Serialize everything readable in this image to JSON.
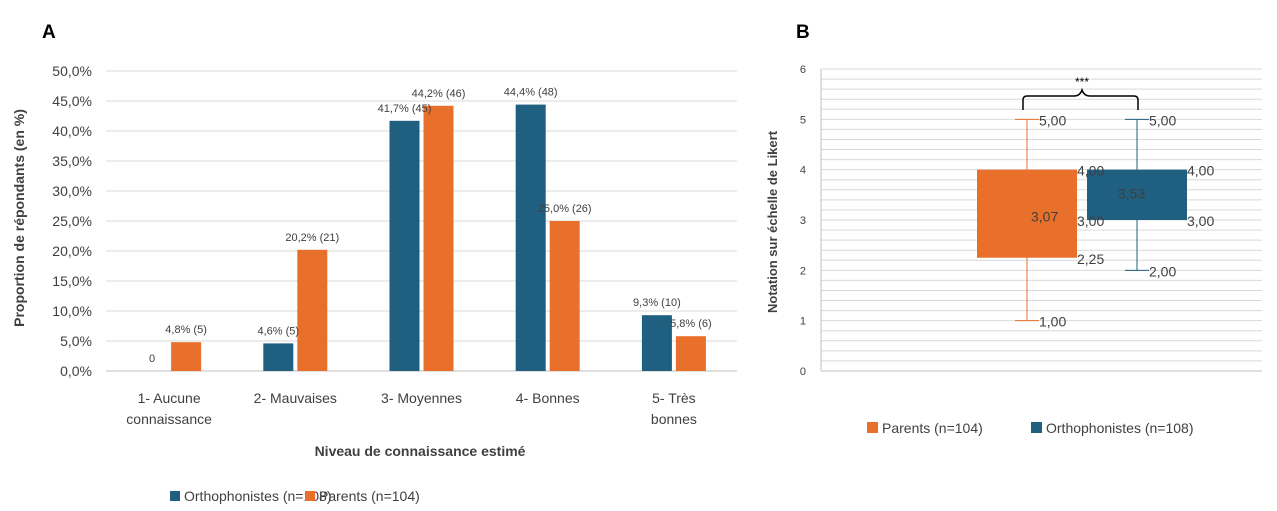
{
  "colors": {
    "orthophonistes": "#1f5f80",
    "parents": "#e8702a",
    "grid": "#d9d9d9",
    "axis": "#bfbfbf",
    "text": "#404040",
    "panel_label": "#000000"
  },
  "chart_data": [
    {
      "panel_label": "A",
      "type": "bar",
      "xlabel": "Niveau de connaissance estimé",
      "ylabel": "Proportion de répondants (en %)",
      "ylim": [
        0,
        50
      ],
      "y_ticks": [
        "0,0%",
        "5,0%",
        "10,0%",
        "15,0%",
        "20,0%",
        "25,0%",
        "30,0%",
        "35,0%",
        "40,0%",
        "45,0%",
        "50,0%"
      ],
      "categories": [
        [
          "1- Aucune",
          "connaissance"
        ],
        [
          "2- Mauvaises"
        ],
        [
          "3- Moyennes"
        ],
        [
          "4- Bonnes"
        ],
        [
          "5- Très",
          "bonnes"
        ]
      ],
      "series": [
        {
          "name": "Orthophonistes (n=108)",
          "color_key": "orthophonistes",
          "values": [
            0,
            4.6,
            41.7,
            44.4,
            9.3
          ],
          "labels": [
            "0",
            "4,6% (5)",
            "41,7% (45)",
            "44,4% (48)",
            "9,3% (10)"
          ]
        },
        {
          "name": "Parents (n=104)",
          "color_key": "parents",
          "values": [
            4.8,
            20.2,
            44.2,
            25.0,
            5.8
          ],
          "labels": [
            "4,8% (5)",
            "20,2% (21)",
            "44,2% (46)",
            "25,0% (26)",
            "5,8% (6)"
          ]
        }
      ],
      "legend": [
        "Orthophonistes (n=108)",
        "Parents (n=104)"
      ],
      "legend_position": "bottom"
    },
    {
      "panel_label": "B",
      "type": "boxplot",
      "ylabel": "Notation sur échelle de Likert",
      "ylim": [
        0,
        6
      ],
      "y_ticks": [
        "0",
        "1",
        "2",
        "3",
        "4",
        "5",
        "6"
      ],
      "significance": "***",
      "series": [
        {
          "name": "Parents (n=104)",
          "color_key": "parents",
          "min": 1.0,
          "q1": 2.25,
          "median": 3.0,
          "mean": 3.07,
          "q3": 4.0,
          "max": 5.0,
          "labels": {
            "min": "1,00",
            "q1": "2,25",
            "median": "3,00",
            "mean": "3,07",
            "q3": "4,00",
            "max": "5,00"
          }
        },
        {
          "name": "Orthophonistes (n=108)",
          "color_key": "orthophonistes",
          "min": 2.0,
          "q1": 3.0,
          "median": 4.0,
          "mean": 3.53,
          "q3": 4.0,
          "max": 5.0,
          "labels": {
            "min": "2,00",
            "q1": "3,00",
            "median": "4,00",
            "mean": "3,53",
            "q3": "4,00",
            "max": "5,00"
          }
        }
      ],
      "legend": [
        "Parents (n=104)",
        "Orthophonistes (n=108)"
      ],
      "legend_position": "bottom"
    }
  ]
}
